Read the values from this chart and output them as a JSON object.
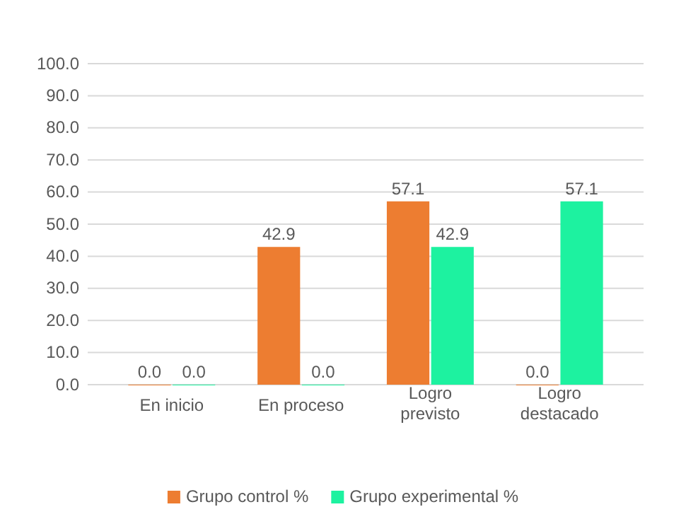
{
  "chart_data": {
    "type": "bar",
    "categories": [
      "En inicio",
      "En proceso",
      "Logro previsto",
      "Logro destacado"
    ],
    "series": [
      {
        "name": "Grupo control %",
        "color": "#ed7d31",
        "values": [
          0,
          42.9,
          57.1,
          0
        ],
        "value_labels": [
          "0.0",
          "42.9",
          "57.1",
          "0.0"
        ]
      },
      {
        "name": "Grupo experimental %",
        "color": "#1df2a0",
        "values": [
          0,
          0,
          42.9,
          57.1
        ],
        "value_labels": [
          "0.0",
          "0.0",
          "42.9",
          "57.1"
        ]
      }
    ],
    "ylim": [
      0,
      100
    ],
    "yticks": [
      {
        "value": 0,
        "label": "0.0"
      },
      {
        "value": 10,
        "label": "10.0"
      },
      {
        "value": 20,
        "label": "20.0"
      },
      {
        "value": 30,
        "label": "30.0"
      },
      {
        "value": 40,
        "label": "40.0"
      },
      {
        "value": 50,
        "label": "50.0"
      },
      {
        "value": 60,
        "label": "60.0"
      },
      {
        "value": 70,
        "label": "70.0"
      },
      {
        "value": 80,
        "label": "80.0"
      },
      {
        "value": 90,
        "label": "90.0"
      },
      {
        "value": 100,
        "label": "100.0"
      }
    ],
    "grid": "y",
    "legend": "bottom"
  }
}
